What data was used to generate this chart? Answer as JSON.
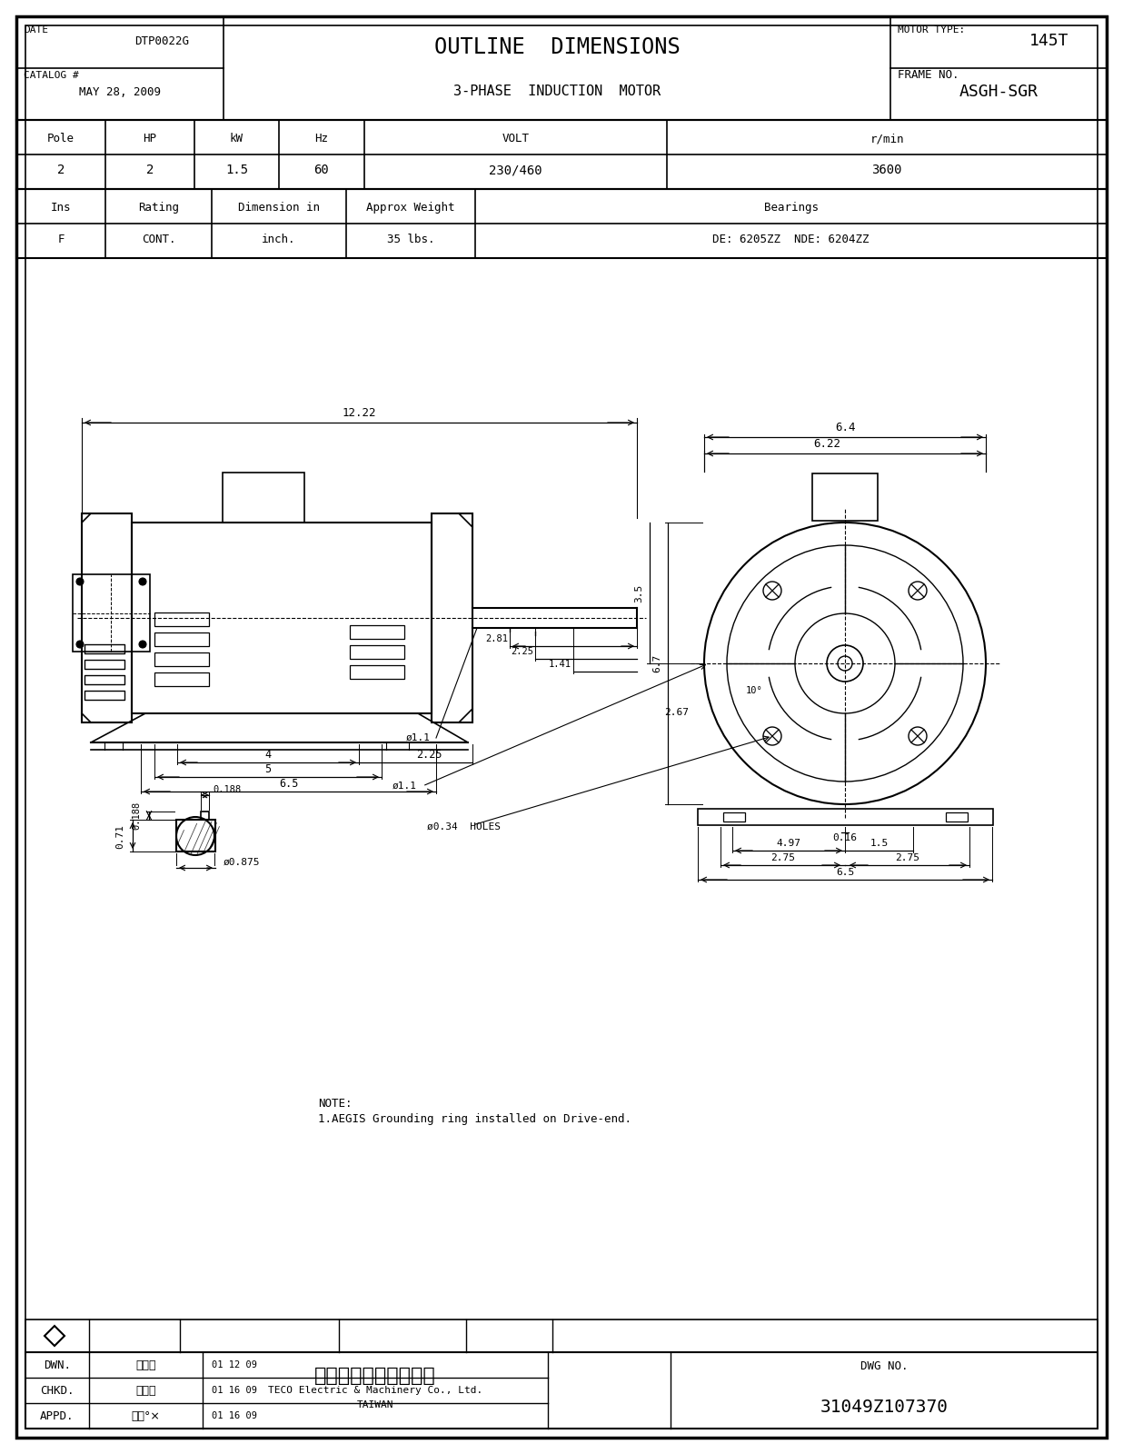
{
  "bg_color": "#ffffff",
  "line_color": "#000000",
  "title1": "OUTLINE  DIMENSIONS",
  "title2": "3-PHASE  INDUCTION  MOTOR",
  "date_label": "DATE",
  "date_value": "MAY 28, 2009",
  "catalog_label": "CATALOG #",
  "catalog_value": "DTP0022G",
  "motor_type_label": "MOTOR TYPE:",
  "motor_type_value": "ASGH-SGR",
  "frame_label": "FRAME NO.",
  "frame_value": "145T",
  "table1_headers": [
    "Pole",
    "HP",
    "kW",
    "Hz",
    "VOLT",
    "r/min"
  ],
  "table1_values": [
    "2",
    "2",
    "1.5",
    "60",
    "230/460",
    "3600"
  ],
  "table2_headers": [
    "Ins",
    "Rating",
    "Dimension in",
    "Approx Weight",
    "Bearings"
  ],
  "table2_values": [
    "F",
    "CONT.",
    "inch.",
    "35 lbs.",
    "DE: 6205ZZ  NDE: 6204ZZ"
  ],
  "note_line1": "NOTE:",
  "note_line2": "1.AEGIS Grounding ring installed on Drive-end.",
  "dwn_label": "DWN.",
  "dwn_name": "陳奈元",
  "dwn_date": "01 12 09",
  "chkd_label": "CHKD.",
  "chkd_name": "陳敬元",
  "chkd_date": "01 16 09",
  "appd_label": "APPD.",
  "appd_name": "蔡明°×",
  "appd_date": "01 16 09",
  "company_cn": "東元電機股份有限公司",
  "company_en": "TECO Electric & Machinery Co., Ltd.",
  "company_country": "TAIWAN",
  "dwg_no_label": "DWG NO.",
  "dwg_no_value": "31049Z107370"
}
